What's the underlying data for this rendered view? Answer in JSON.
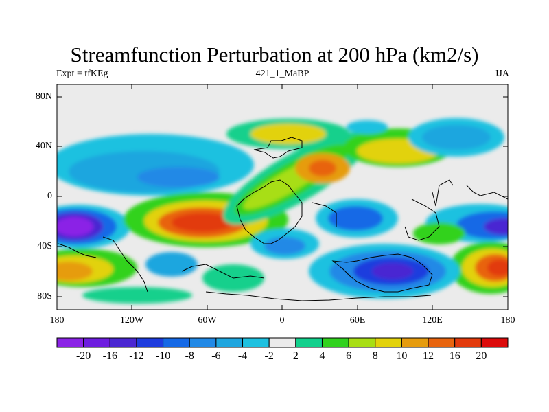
{
  "title": "Streamfunction Perturbation at 200 hPa (km2/s)",
  "subtitle_left": "Expt = tfKEg",
  "subtitle_center": "421_1_MaBP",
  "subtitle_right": "JJA",
  "lat_ticks": [
    "80N",
    "40N",
    "0",
    "40S",
    "80S"
  ],
  "lon_ticks": [
    "180",
    "120W",
    "60W",
    "0",
    "60E",
    "120E",
    "180"
  ],
  "colorbar": {
    "labels": [
      "-20",
      "-16",
      "-12",
      "-10",
      "-8",
      "-6",
      "-4",
      "-2",
      "2",
      "4",
      "6",
      "8",
      "10",
      "12",
      "16",
      "20"
    ],
    "colors": [
      "#8b23e6",
      "#6e1de0",
      "#4a27d2",
      "#1e3cde",
      "#1569e6",
      "#2189e6",
      "#1fa6df",
      "#1ec1e0",
      "#ebebeb",
      "#12d08c",
      "#31d21e",
      "#a8de14",
      "#e2d20c",
      "#e69c0e",
      "#e8640e",
      "#e23a0c",
      "#dc0a0a"
    ]
  }
}
